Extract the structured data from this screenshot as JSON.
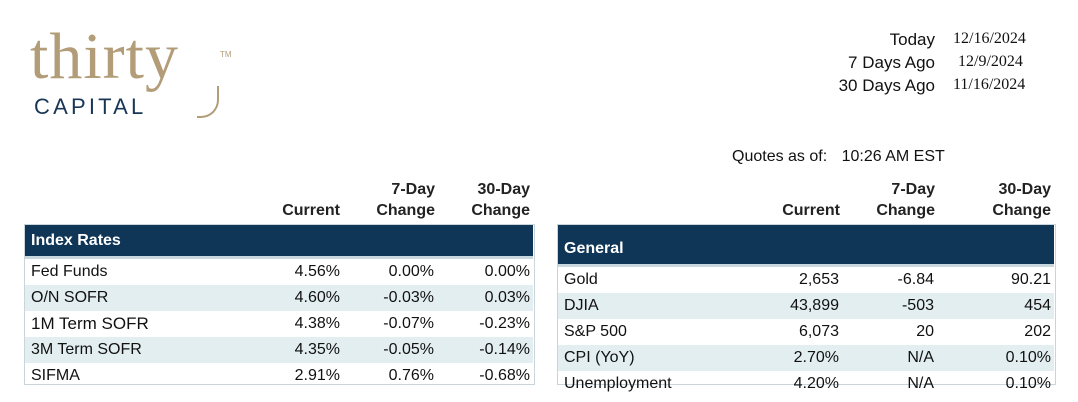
{
  "logo": {
    "word": "thirty",
    "tm": "TM",
    "sub": "CAPITAL"
  },
  "dates": [
    {
      "label": "Today",
      "value": "12/16/2024"
    },
    {
      "label": "7 Days Ago",
      "value": "12/9/2024"
    },
    {
      "label": "30 Days Ago",
      "value": "11/16/2024"
    }
  ],
  "quotes": {
    "label": "Quotes as of:",
    "time": "10:26 AM  EST"
  },
  "columns": {
    "current": "Current",
    "seven_day": [
      "7-Day",
      "Change"
    ],
    "thirty_day": [
      "30-Day",
      "Change"
    ]
  },
  "index_rates": {
    "title": "Index Rates",
    "rows": [
      [
        "Fed Funds",
        "4.56%",
        "0.00%",
        "0.00%"
      ],
      [
        "O/N SOFR",
        "4.60%",
        "-0.03%",
        "0.03%"
      ],
      [
        "1M Term SOFR",
        "4.38%",
        "-0.07%",
        "-0.23%"
      ],
      [
        "3M Term SOFR",
        "4.35%",
        "-0.05%",
        "-0.14%"
      ],
      [
        "SIFMA",
        "2.91%",
        "0.76%",
        "-0.68%"
      ]
    ]
  },
  "general": {
    "title": "General",
    "rows": [
      [
        "Gold",
        "2,653",
        "-6.84",
        "90.21"
      ],
      [
        "DJIA",
        "43,899",
        "-503",
        "454"
      ],
      [
        "S&P 500",
        "6,073",
        "20",
        "202"
      ],
      [
        "CPI (YoY)",
        "2.70%",
        "N/A",
        "0.10%"
      ],
      [
        "Unemployment",
        "4.20%",
        "N/A",
        "0.10%"
      ]
    ]
  },
  "colors": {
    "navy": "#0f3557",
    "gold": "#b29d78",
    "band": "#e3eef0"
  }
}
